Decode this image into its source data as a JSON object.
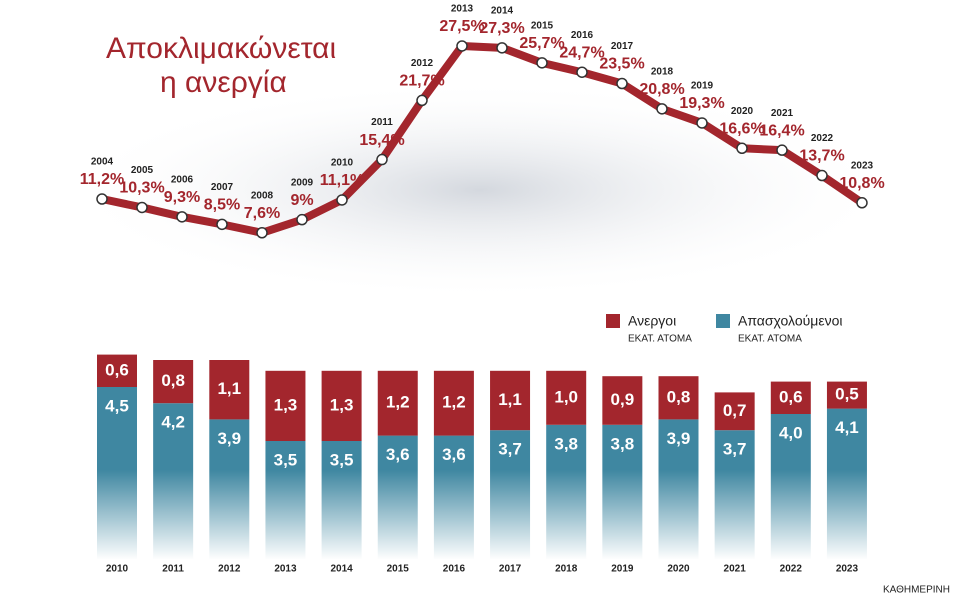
{
  "chart_data": [
    {
      "type": "line",
      "title": [
        "Αποκλιμακώνεται",
        "η ανεργία"
      ],
      "x": [
        2004,
        2005,
        2006,
        2007,
        2008,
        2009,
        2010,
        2011,
        2012,
        2013,
        2014,
        2015,
        2016,
        2017,
        2018,
        2019,
        2020,
        2021,
        2022,
        2023
      ],
      "values": [
        11.2,
        10.3,
        9.3,
        8.5,
        7.6,
        9,
        11.1,
        15.4,
        21.7,
        27.5,
        27.3,
        25.7,
        24.7,
        23.5,
        20.8,
        19.3,
        16.6,
        16.4,
        13.7,
        10.8
      ],
      "value_labels": [
        "11,2%",
        "10,3%",
        "9,3%",
        "8,5%",
        "7,6%",
        "9%",
        "11,1%",
        "15,4%",
        "21,7%",
        "27,5%",
        "27,3%",
        "25,7%",
        "24,7%",
        "23,5%",
        "20,8%",
        "19,3%",
        "16,6%",
        "16,4%",
        "13,7%",
        "10,8%"
      ],
      "color": "#a3262d"
    },
    {
      "type": "stacked_bar",
      "categories": [
        "2010",
        "2011",
        "2012",
        "2013",
        "2014",
        "2015",
        "2016",
        "2017",
        "2018",
        "2019",
        "2020",
        "2021",
        "2022",
        "2023"
      ],
      "series": [
        {
          "name": "Απασχολούμενοι",
          "unit": "ΕΚΑΤ. ΑΤΟΜΑ",
          "color": "#3f87a1",
          "values": [
            4.5,
            4.2,
            3.9,
            3.5,
            3.5,
            3.6,
            3.6,
            3.7,
            3.8,
            3.8,
            3.9,
            3.7,
            4.0,
            4.1
          ],
          "value_labels": [
            "4,5",
            "4,2",
            "3,9",
            "3,5",
            "3,5",
            "3,6",
            "3,6",
            "3,7",
            "3,8",
            "3,8",
            "3,9",
            "3,7",
            "4,0",
            "4,1"
          ]
        },
        {
          "name": "Ανεργοι",
          "unit": "ΕΚΑΤ. ΑΤΟΜΑ",
          "color": "#a3262d",
          "values": [
            0.6,
            0.8,
            1.1,
            1.3,
            1.3,
            1.2,
            1.2,
            1.1,
            1.0,
            0.9,
            0.8,
            0.7,
            0.6,
            0.5
          ],
          "value_labels": [
            "0,6",
            "0,8",
            "1,1",
            "1,3",
            "1,3",
            "1,2",
            "1,2",
            "1,1",
            "1,0",
            "0,9",
            "0,8",
            "0,7",
            "0,6",
            "0,5"
          ]
        }
      ]
    }
  ],
  "source": "Η ΚΑΘΗΜΕΡΙΝΗ"
}
